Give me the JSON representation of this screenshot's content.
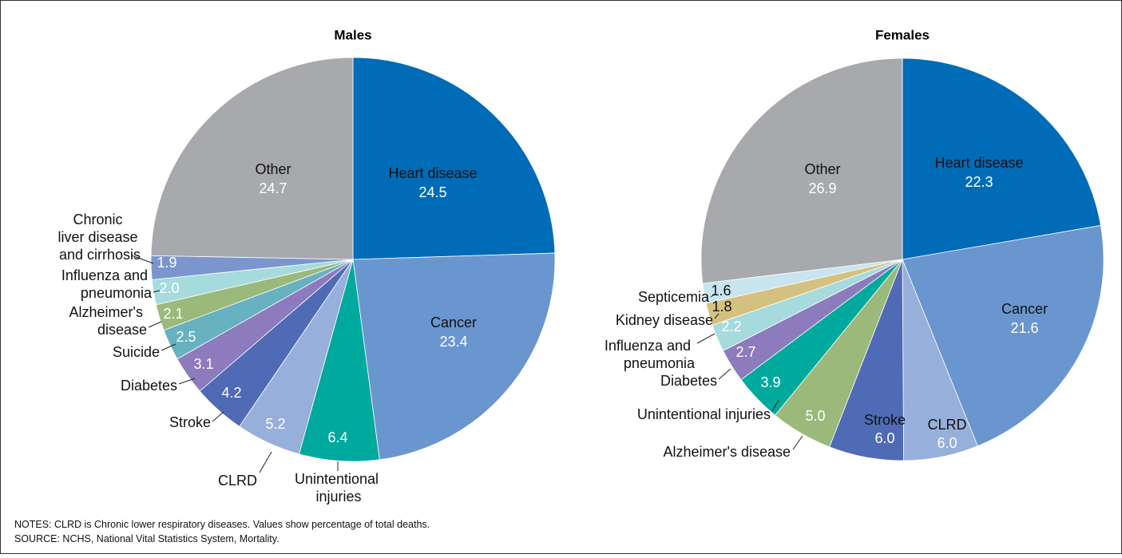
{
  "chart_data": [
    {
      "type": "pie",
      "title": "Males",
      "categories": [
        "Heart disease",
        "Cancer",
        "Unintentional injuries",
        "CLRD",
        "Stroke",
        "Diabetes",
        "Suicide",
        "Alzheimer's disease",
        "Influenza and pneumonia",
        "Chronic liver disease and cirrhosis",
        "Other"
      ],
      "values": [
        24.5,
        23.4,
        6.4,
        5.2,
        4.2,
        3.1,
        2.5,
        2.1,
        2.0,
        1.9,
        24.7
      ],
      "value_labels": [
        "24.5",
        "23.4",
        "6.4",
        "5.2",
        "4.2",
        "3.1",
        "2.5",
        "2.1",
        "2.0",
        "1.9",
        "24.7"
      ],
      "colors": [
        "#006bb6",
        "#6a96cf",
        "#00a99d",
        "#97afdb",
        "#4f6bb6",
        "#8c7bbd",
        "#68b1c0",
        "#9ab97a",
        "#a6dbde",
        "#7b96cf",
        "#a7a9ac"
      ]
    },
    {
      "type": "pie",
      "title": "Females",
      "categories": [
        "Heart disease",
        "Cancer",
        "CLRD",
        "Stroke",
        "Alzheimer's disease",
        "Unintentional injuries",
        "Diabetes",
        "Influenza and pneumonia",
        "Kidney disease",
        "Septicemia",
        "Other"
      ],
      "values": [
        22.3,
        21.6,
        6.0,
        6.0,
        5.0,
        3.9,
        2.7,
        2.2,
        1.8,
        1.6,
        26.9
      ],
      "value_labels": [
        "22.3",
        "21.6",
        "6.0",
        "6.0",
        "5.0",
        "3.9",
        "2.7",
        "2.2",
        "1.8",
        "1.6",
        "26.9"
      ],
      "colors": [
        "#006bb6",
        "#6a96cf",
        "#97afdb",
        "#4f6bb6",
        "#9ab97a",
        "#00a99d",
        "#8c7bbd",
        "#a6dbde",
        "#d4c17f",
        "#c8e5ee",
        "#a7a9ac"
      ]
    }
  ],
  "notes": "NOTES: CLRD is Chronic lower respiratory diseases. Values show percentage of total deaths.",
  "source": "SOURCE: NCHS, National Vital Statistics System, Mortality."
}
